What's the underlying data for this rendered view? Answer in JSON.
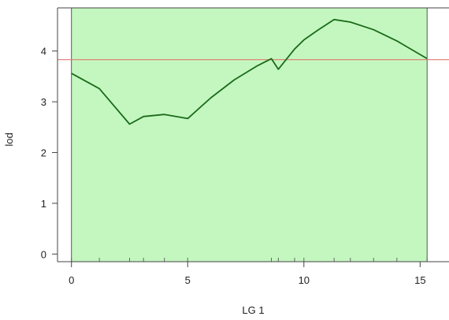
{
  "chart_data": {
    "type": "line",
    "xlabel": "LG 1",
    "ylabel": "lod",
    "xlim": [
      -0.6,
      15.7
    ],
    "ylim": [
      -0.15,
      4.85
    ],
    "x_ticks": [
      0,
      5,
      10,
      15
    ],
    "y_ticks": [
      0,
      1,
      2,
      3,
      4
    ],
    "region": {
      "x_start": 0,
      "x_end": 15.3,
      "color": "#c4f7c0"
    },
    "threshold": {
      "value": 3.83,
      "color": "#e07a6e"
    },
    "marker_positions": [
      0,
      1.2,
      2.5,
      3.1,
      4.0,
      5.0,
      8.6,
      8.9,
      9.6,
      10.0,
      11.3,
      12.0,
      13.0,
      14.0,
      15.3
    ],
    "series": [
      {
        "color": "#1a6b1a",
        "x": [
          0,
          1.2,
          2.5,
          3.1,
          4.0,
          5.0,
          6.0,
          7.0,
          8.0,
          8.6,
          8.9,
          9.6,
          10.0,
          10.6,
          11.3,
          12.0,
          13.0,
          14.0,
          15.3
        ],
        "y": [
          3.56,
          3.26,
          2.56,
          2.71,
          2.75,
          2.67,
          3.08,
          3.43,
          3.71,
          3.85,
          3.64,
          4.04,
          4.22,
          4.41,
          4.62,
          4.57,
          4.42,
          4.2,
          3.85
        ]
      }
    ]
  }
}
